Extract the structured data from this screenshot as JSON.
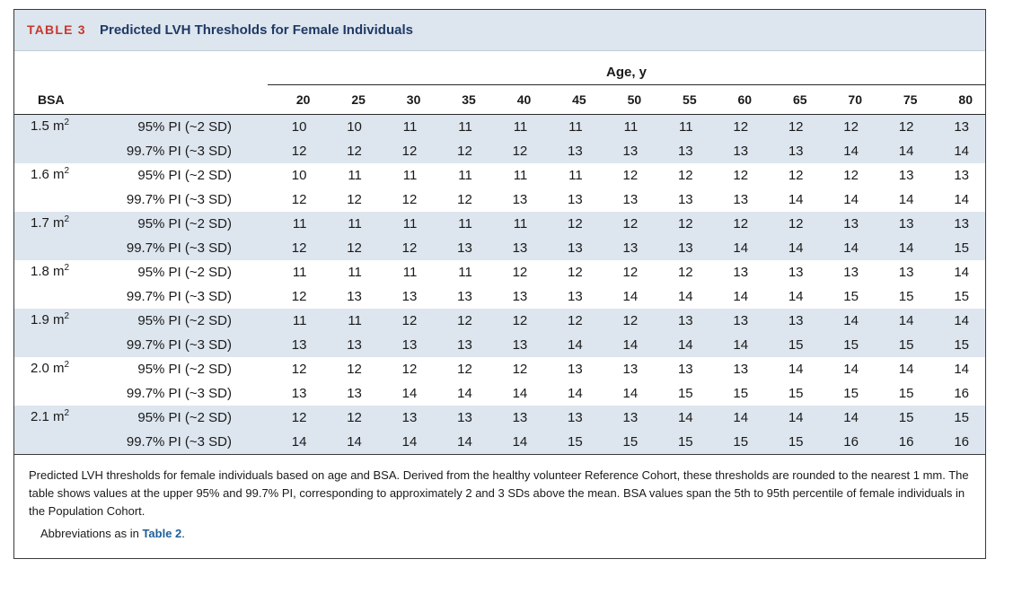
{
  "header": {
    "table_label": "TABLE 3",
    "title": "Predicted LVH Thresholds for Female Individuals"
  },
  "columns": {
    "age_label": "Age, y",
    "bsa_label": "BSA",
    "ages": [
      "20",
      "25",
      "30",
      "35",
      "40",
      "45",
      "50",
      "55",
      "60",
      "65",
      "70",
      "75",
      "80"
    ]
  },
  "rows": [
    {
      "bsa": "1.5 m",
      "bsa_sup": "2",
      "pi95": {
        "label": "95% PI (~2 SD)",
        "values": [
          "10",
          "10",
          "11",
          "11",
          "11",
          "11",
          "11",
          "11",
          "12",
          "12",
          "12",
          "12",
          "13"
        ]
      },
      "pi997": {
        "label": "99.7% PI (~3 SD)",
        "values": [
          "12",
          "12",
          "12",
          "12",
          "12",
          "13",
          "13",
          "13",
          "13",
          "13",
          "14",
          "14",
          "14"
        ]
      }
    },
    {
      "bsa": "1.6 m",
      "bsa_sup": "2",
      "pi95": {
        "label": "95% PI (~2 SD)",
        "values": [
          "10",
          "11",
          "11",
          "11",
          "11",
          "11",
          "12",
          "12",
          "12",
          "12",
          "12",
          "13",
          "13"
        ]
      },
      "pi997": {
        "label": "99.7% PI (~3 SD)",
        "values": [
          "12",
          "12",
          "12",
          "12",
          "13",
          "13",
          "13",
          "13",
          "13",
          "14",
          "14",
          "14",
          "14"
        ]
      }
    },
    {
      "bsa": "1.7 m",
      "bsa_sup": "2",
      "pi95": {
        "label": "95% PI (~2 SD)",
        "values": [
          "11",
          "11",
          "11",
          "11",
          "11",
          "12",
          "12",
          "12",
          "12",
          "12",
          "13",
          "13",
          "13"
        ]
      },
      "pi997": {
        "label": "99.7% PI (~3 SD)",
        "values": [
          "12",
          "12",
          "12",
          "13",
          "13",
          "13",
          "13",
          "13",
          "14",
          "14",
          "14",
          "14",
          "15"
        ]
      }
    },
    {
      "bsa": "1.8 m",
      "bsa_sup": "2",
      "pi95": {
        "label": "95% PI (~2 SD)",
        "values": [
          "11",
          "11",
          "11",
          "11",
          "12",
          "12",
          "12",
          "12",
          "13",
          "13",
          "13",
          "13",
          "14"
        ]
      },
      "pi997": {
        "label": "99.7% PI (~3 SD)",
        "values": [
          "12",
          "13",
          "13",
          "13",
          "13",
          "13",
          "14",
          "14",
          "14",
          "14",
          "15",
          "15",
          "15"
        ]
      }
    },
    {
      "bsa": "1.9 m",
      "bsa_sup": "2",
      "pi95": {
        "label": "95% PI (~2 SD)",
        "values": [
          "11",
          "11",
          "12",
          "12",
          "12",
          "12",
          "12",
          "13",
          "13",
          "13",
          "14",
          "14",
          "14"
        ]
      },
      "pi997": {
        "label": "99.7% PI (~3 SD)",
        "values": [
          "13",
          "13",
          "13",
          "13",
          "13",
          "14",
          "14",
          "14",
          "14",
          "15",
          "15",
          "15",
          "15"
        ]
      }
    },
    {
      "bsa": "2.0 m",
      "bsa_sup": "2",
      "pi95": {
        "label": "95% PI (~2 SD)",
        "values": [
          "12",
          "12",
          "12",
          "12",
          "12",
          "13",
          "13",
          "13",
          "13",
          "14",
          "14",
          "14",
          "14"
        ]
      },
      "pi997": {
        "label": "99.7% PI (~3 SD)",
        "values": [
          "13",
          "13",
          "14",
          "14",
          "14",
          "14",
          "14",
          "15",
          "15",
          "15",
          "15",
          "15",
          "16"
        ]
      }
    },
    {
      "bsa": "2.1 m",
      "bsa_sup": "2",
      "pi95": {
        "label": "95% PI (~2 SD)",
        "values": [
          "12",
          "12",
          "13",
          "13",
          "13",
          "13",
          "13",
          "14",
          "14",
          "14",
          "14",
          "15",
          "15"
        ]
      },
      "pi997": {
        "label": "99.7% PI (~3 SD)",
        "values": [
          "14",
          "14",
          "14",
          "14",
          "14",
          "15",
          "15",
          "15",
          "15",
          "15",
          "16",
          "16",
          "16"
        ]
      }
    }
  ],
  "footnote": {
    "text": "Predicted LVH thresholds for female individuals based on age and BSA. Derived from the healthy volunteer Reference Cohort, these thresholds are rounded to the nearest 1 mm. The table shows values at the upper 95% and 99.7% PI, corresponding to approximately 2 and 3 SDs above the mean. BSA values span the 5th to 95th percentile of female individuals in the Population Cohort.",
    "abbrev_prefix": "Abbreviations as in ",
    "abbrev_link": "Table 2",
    "abbrev_suffix": "."
  },
  "colors": {
    "label_red": "#c8372d",
    "title_navy": "#1f3a66",
    "shade": "#dde5ee",
    "link": "#1f5f99"
  }
}
